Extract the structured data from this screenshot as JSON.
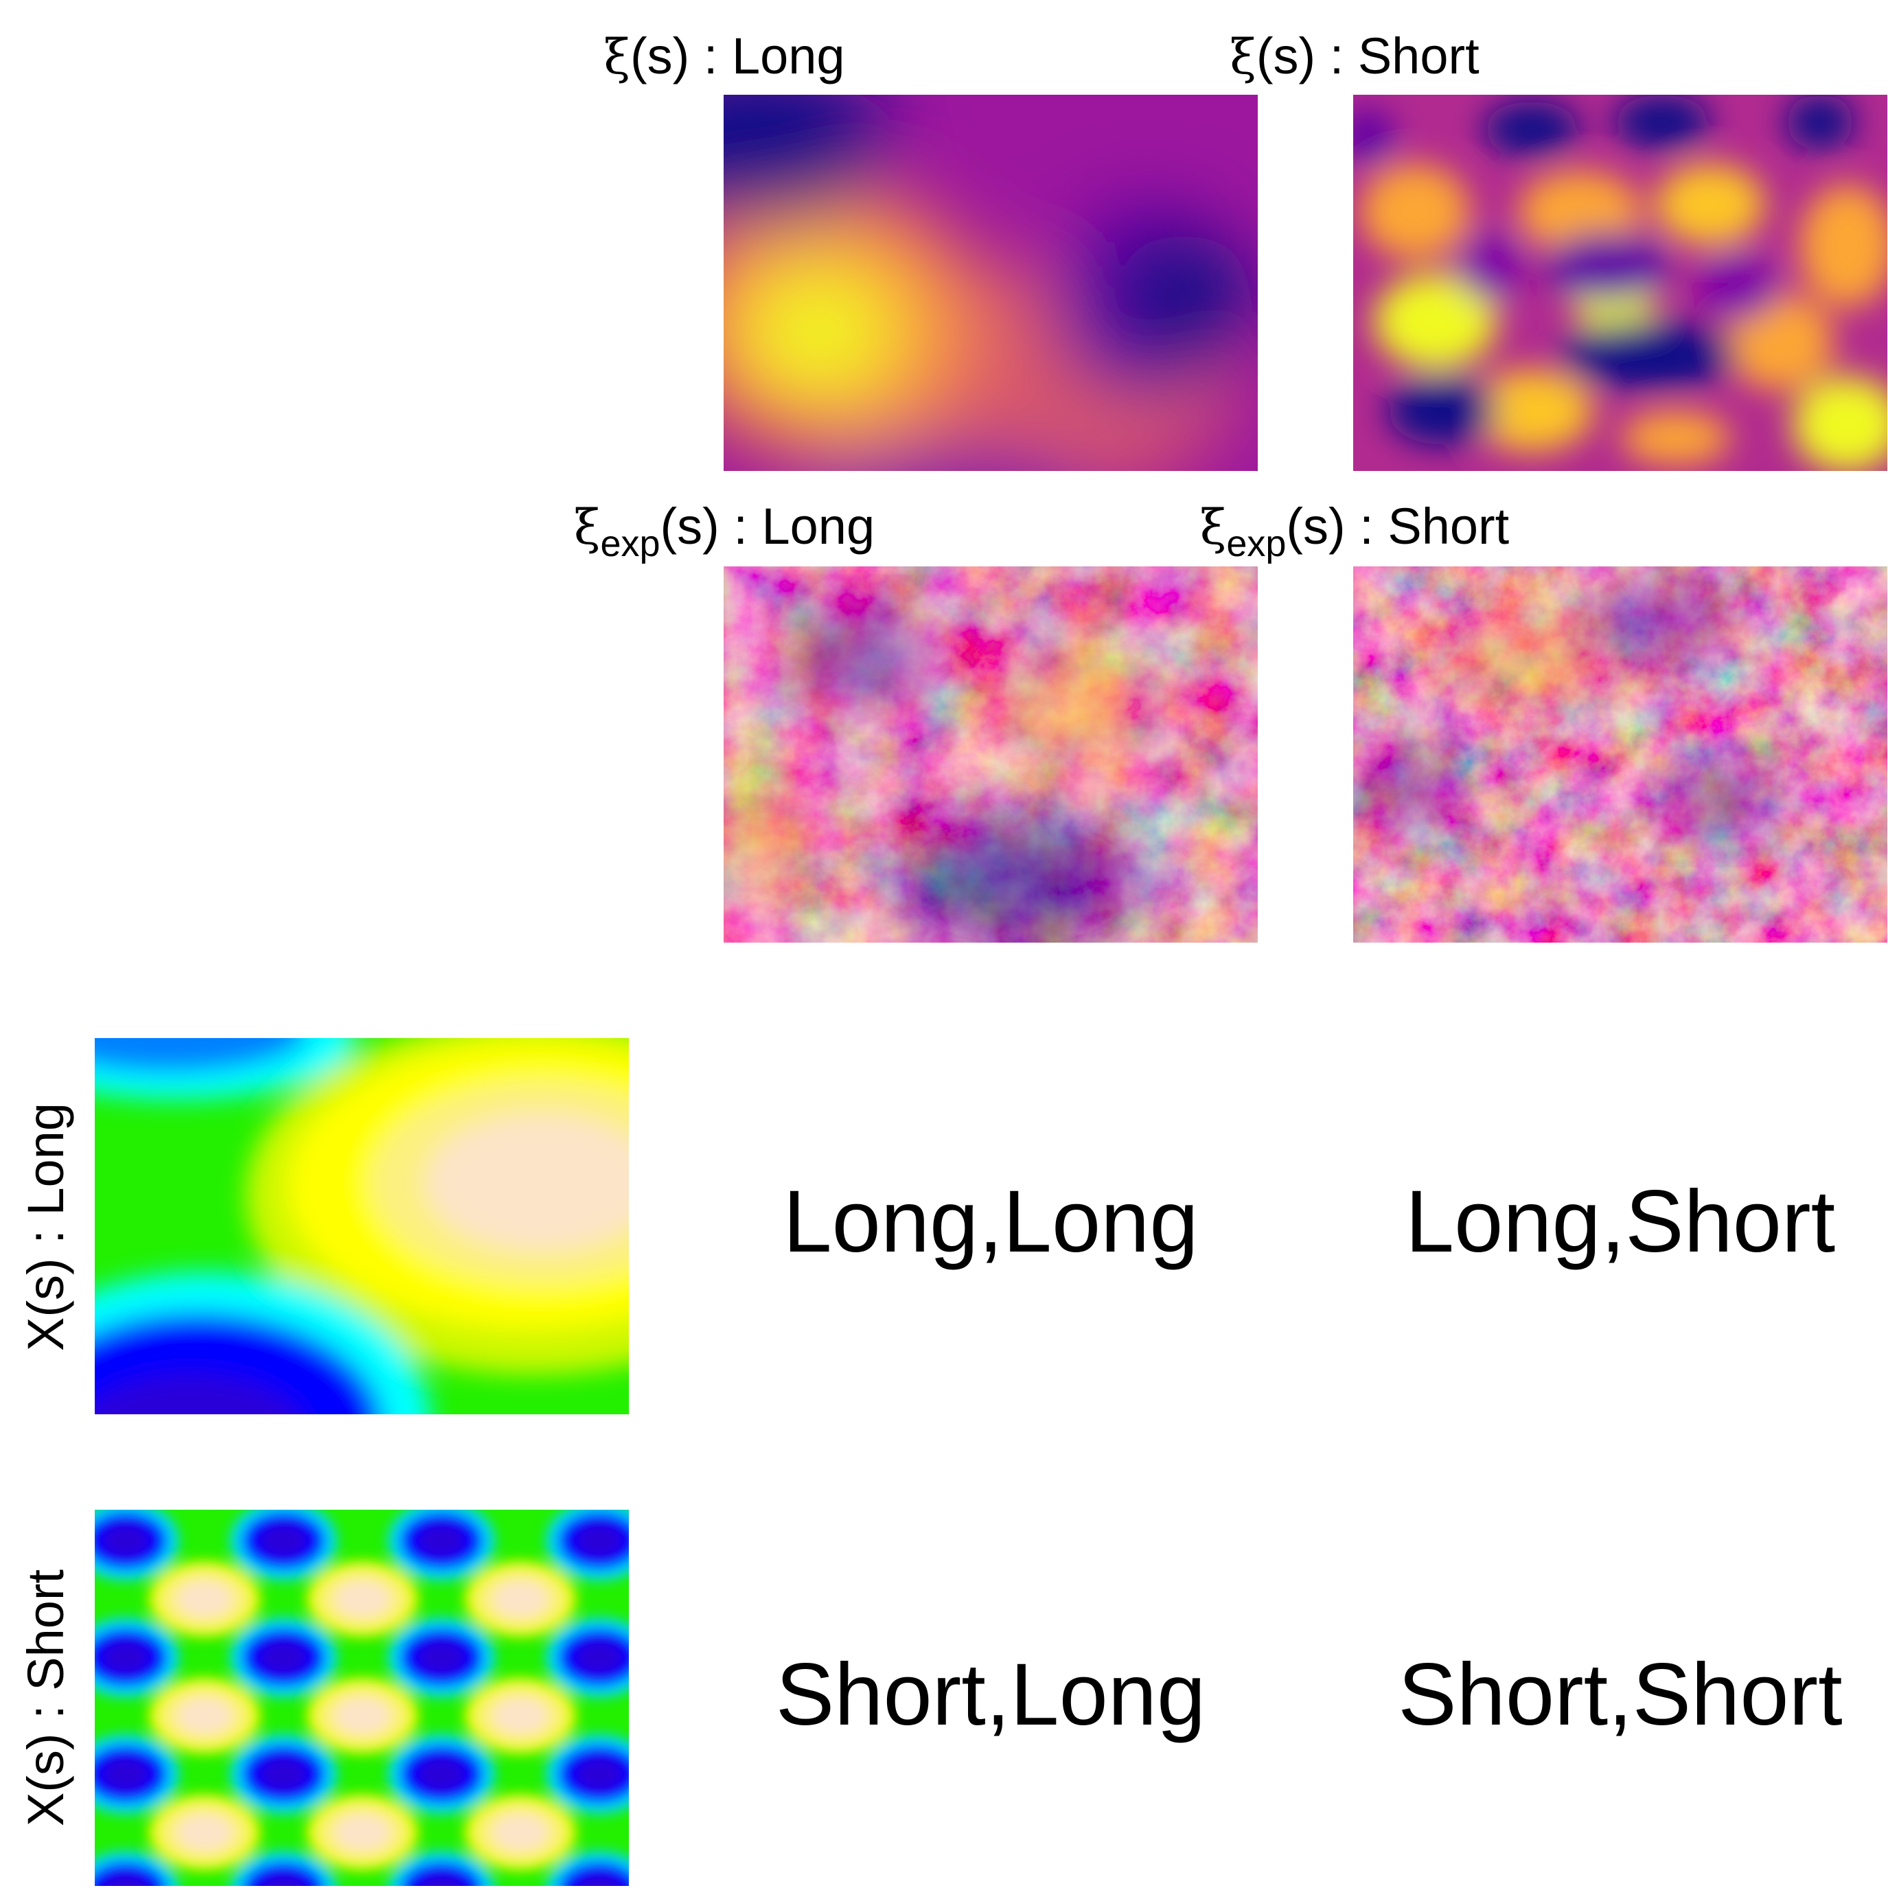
{
  "columns": {
    "xi_long": {
      "symbol": "ξ",
      "subscript": "",
      "suffix": "(s) : Long"
    },
    "xi_short": {
      "symbol": "ξ",
      "subscript": "",
      "suffix": "(s) : Short"
    },
    "xi_exp_long": {
      "symbol": "ξ",
      "subscript": "exp",
      "suffix": "(s) : Long"
    },
    "xi_exp_short": {
      "symbol": "ξ",
      "subscript": "exp",
      "suffix": "(s) : Short"
    }
  },
  "rows": {
    "x_long": "X(s) : Long",
    "x_short": "X(s) : Short"
  },
  "combinations": {
    "long_long": "Long,Long",
    "long_short": "Long,Short",
    "short_long": "Short,Long",
    "short_short": "Short,Short"
  },
  "colors": {
    "plasma_ramp": [
      "#0d0887",
      "#6a00a8",
      "#b12a90",
      "#e16462",
      "#fca636",
      "#f0f921"
    ],
    "rainbow_ramp": [
      "#2a00d8",
      "#0000ff",
      "#00ffff",
      "#00ff00",
      "#ffff00",
      "#fce4c8"
    ]
  }
}
